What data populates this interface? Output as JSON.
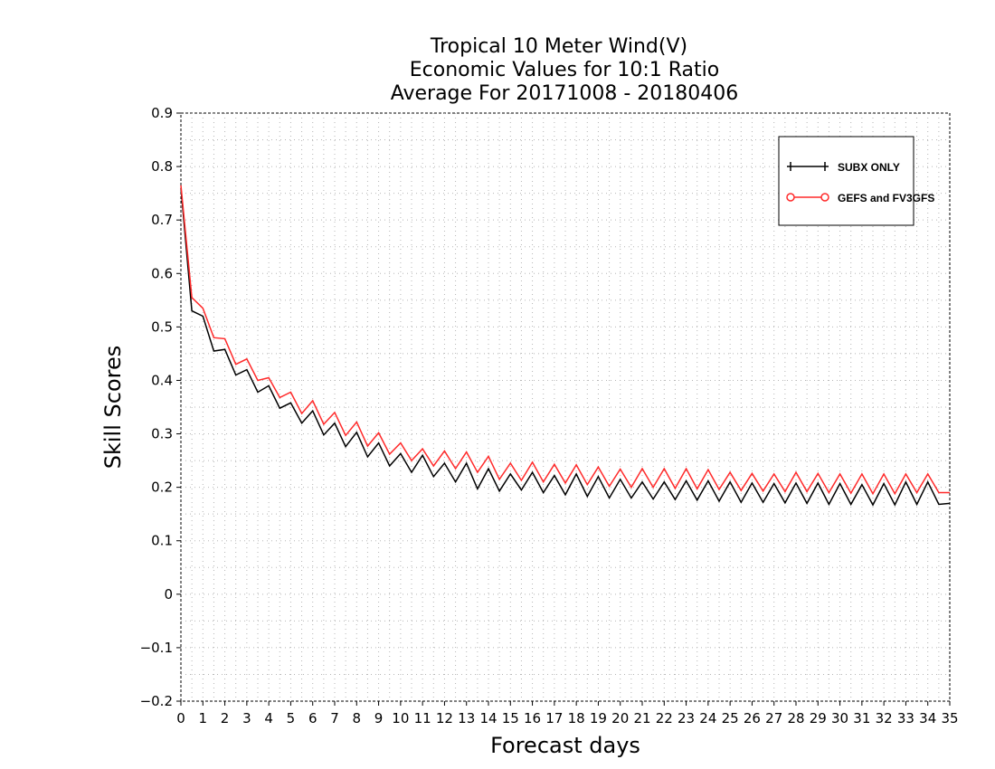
{
  "chart_data": {
    "type": "line",
    "title": [
      "Tropical 10 Meter Wind(V)",
      "Economic Values for 10:1 Ratio",
      "Average For 20171008 - 20180406"
    ],
    "xlabel": "Forecast days",
    "ylabel": "Skill Scores",
    "xlim": [
      0,
      35
    ],
    "ylim": [
      -0.2,
      0.9
    ],
    "x_ticks": [
      0,
      1,
      2,
      3,
      4,
      5,
      6,
      7,
      8,
      9,
      10,
      11,
      12,
      13,
      14,
      15,
      16,
      17,
      18,
      19,
      20,
      21,
      22,
      23,
      24,
      25,
      26,
      27,
      28,
      29,
      30,
      31,
      32,
      33,
      34,
      35
    ],
    "y_ticks": [
      -0.2,
      -0.1,
      0,
      0.1,
      0.2,
      0.3,
      0.4,
      0.5,
      0.6,
      0.7,
      0.8,
      0.9
    ],
    "y_tick_labels": [
      "−0.2",
      "−0.1",
      "0",
      "0.1",
      "0.2",
      "0.3",
      "0.4",
      "0.5",
      "0.6",
      "0.7",
      "0.8",
      "0.9"
    ],
    "grid": true,
    "legend_position": "top-right",
    "x": [
      0,
      0.5,
      1,
      1.5,
      2,
      2.5,
      3,
      3.5,
      4,
      4.5,
      5,
      5.5,
      6,
      6.5,
      7,
      7.5,
      8,
      8.5,
      9,
      9.5,
      10,
      10.5,
      11,
      11.5,
      12,
      12.5,
      13,
      13.5,
      14,
      14.5,
      15,
      15.5,
      16,
      16.5,
      17,
      17.5,
      18,
      18.5,
      19,
      19.5,
      20,
      20.5,
      21,
      21.5,
      22,
      22.5,
      23,
      23.5,
      24,
      24.5,
      25,
      25.5,
      26,
      26.5,
      27,
      27.5,
      28,
      28.5,
      29,
      29.5,
      30,
      30.5,
      31,
      31.5,
      32,
      32.5,
      33,
      33.5,
      34,
      34.5,
      35
    ],
    "series": [
      {
        "name": "SUBX ONLY",
        "color": "#000000",
        "marker": "cross",
        "values": [
          0.76,
          0.53,
          0.52,
          0.455,
          0.458,
          0.41,
          0.42,
          0.378,
          0.39,
          0.348,
          0.358,
          0.32,
          0.343,
          0.298,
          0.32,
          0.276,
          0.303,
          0.257,
          0.283,
          0.24,
          0.263,
          0.228,
          0.26,
          0.22,
          0.245,
          0.21,
          0.245,
          0.197,
          0.235,
          0.193,
          0.225,
          0.195,
          0.228,
          0.19,
          0.222,
          0.186,
          0.225,
          0.183,
          0.22,
          0.18,
          0.215,
          0.18,
          0.21,
          0.178,
          0.21,
          0.177,
          0.212,
          0.176,
          0.212,
          0.174,
          0.21,
          0.172,
          0.208,
          0.172,
          0.207,
          0.171,
          0.208,
          0.17,
          0.208,
          0.168,
          0.207,
          0.168,
          0.205,
          0.167,
          0.207,
          0.167,
          0.21,
          0.168,
          0.21,
          0.168,
          0.17
        ]
      },
      {
        "name": "GEFS and FV3GFS",
        "color": "#ff2a2a",
        "marker": "circle",
        "values": [
          0.765,
          0.555,
          0.535,
          0.48,
          0.478,
          0.43,
          0.44,
          0.4,
          0.405,
          0.368,
          0.378,
          0.338,
          0.362,
          0.318,
          0.34,
          0.297,
          0.322,
          0.277,
          0.302,
          0.262,
          0.283,
          0.25,
          0.272,
          0.24,
          0.268,
          0.235,
          0.266,
          0.228,
          0.258,
          0.215,
          0.245,
          0.213,
          0.247,
          0.21,
          0.243,
          0.208,
          0.242,
          0.205,
          0.238,
          0.202,
          0.234,
          0.2,
          0.235,
          0.2,
          0.235,
          0.198,
          0.235,
          0.197,
          0.233,
          0.196,
          0.228,
          0.194,
          0.226,
          0.193,
          0.225,
          0.192,
          0.228,
          0.192,
          0.226,
          0.19,
          0.225,
          0.189,
          0.225,
          0.188,
          0.225,
          0.188,
          0.225,
          0.19,
          0.225,
          0.19,
          0.19
        ]
      }
    ]
  }
}
